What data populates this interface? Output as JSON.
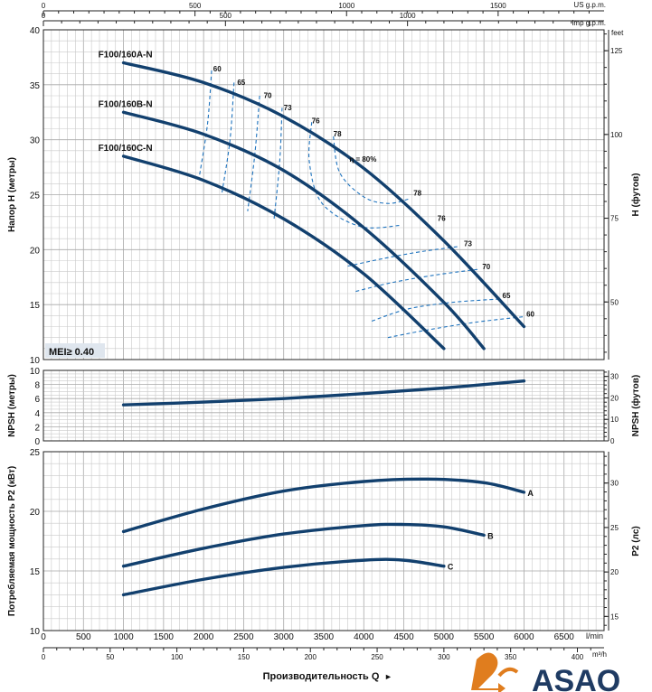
{
  "logo": {
    "brand_text": "ASAO",
    "accent_color": "#e07d1e",
    "text_color": "#1f3b63"
  },
  "axes": {
    "top_us": {
      "unit": "US g.p.m.",
      "ticks": [
        0,
        500,
        1000,
        1500
      ]
    },
    "top_imp": {
      "unit": "Imp g.p.m.",
      "ticks": [
        0,
        500,
        1000
      ]
    },
    "bottom_lmin": {
      "unit": "l/min",
      "ticks": [
        0,
        500,
        1000,
        1500,
        2000,
        2500,
        3000,
        3500,
        4000,
        4500,
        5000,
        5500,
        6000,
        6500
      ]
    },
    "bottom_m3h": {
      "unit": "m³/h",
      "ticks": [
        0,
        50,
        100,
        150,
        200,
        250,
        300,
        350,
        400
      ]
    },
    "xlabel": "Производительность Q"
  },
  "chart_data": [
    {
      "type": "line",
      "name": "head",
      "ylabel": "Напор H (метры)",
      "ylabel_right": "H (футов)",
      "right_unit": "feet",
      "ylim": [
        10,
        40
      ],
      "yticks": [
        10,
        15,
        20,
        25,
        30,
        35,
        40
      ],
      "right_ticks": [
        50,
        75,
        100,
        125
      ],
      "xlim": [
        0,
        7000
      ],
      "badge": "MEI≥ 0.40",
      "eta_label": "η = 80%",
      "series": [
        {
          "name": "F100/160A-N",
          "x": [
            1000,
            2000,
            3000,
            4000,
            5000,
            6000
          ],
          "y": [
            37.0,
            35.2,
            32.1,
            27.4,
            20.8,
            13.0
          ]
        },
        {
          "name": "F100/160B-N",
          "x": [
            1000,
            2000,
            3000,
            4000,
            5000,
            5500
          ],
          "y": [
            32.5,
            30.5,
            27.2,
            22.0,
            15.2,
            11.0
          ]
        },
        {
          "name": "F100/160C-N",
          "x": [
            1000,
            2000,
            3000,
            4000,
            5000
          ],
          "y": [
            28.5,
            26.3,
            22.8,
            17.8,
            11.0
          ]
        }
      ],
      "efficiency_labels": [
        {
          "text": "60",
          "x": 2120,
          "y": 36.2
        },
        {
          "text": "65",
          "x": 2420,
          "y": 35.0
        },
        {
          "text": "70",
          "x": 2750,
          "y": 33.8
        },
        {
          "text": "73",
          "x": 3000,
          "y": 32.7
        },
        {
          "text": "76",
          "x": 3350,
          "y": 31.5
        },
        {
          "text": "78",
          "x": 3620,
          "y": 30.3
        },
        {
          "text": "78",
          "x": 4620,
          "y": 24.9
        },
        {
          "text": "76",
          "x": 4920,
          "y": 22.6
        },
        {
          "text": "73",
          "x": 5250,
          "y": 20.3
        },
        {
          "text": "70",
          "x": 5480,
          "y": 18.2
        },
        {
          "text": "65",
          "x": 5730,
          "y": 15.6
        },
        {
          "text": "60",
          "x": 6030,
          "y": 13.9
        }
      ],
      "efficiency_curves": [
        {
          "x": [
            2100,
            2050,
            1950
          ],
          "y": [
            36.3,
            31.5,
            26.8
          ]
        },
        {
          "x": [
            2380,
            2330,
            2230
          ],
          "y": [
            35.2,
            30.0,
            25.2
          ]
        },
        {
          "x": [
            2700,
            2640,
            2550
          ],
          "y": [
            34.0,
            28.7,
            23.5
          ]
        },
        {
          "x": [
            2980,
            2950,
            2880
          ],
          "y": [
            32.9,
            28.0,
            22.8
          ]
        },
        {
          "x": [
            3350,
            3320,
            3480,
            3960,
            4450
          ],
          "y": [
            31.6,
            28.0,
            24.2,
            22.1,
            22.2
          ]
        },
        {
          "x": [
            3620,
            3700,
            4000,
            4300,
            4560
          ],
          "y": [
            30.3,
            27.0,
            24.8,
            24.2,
            24.6
          ]
        },
        {
          "x": [
            3800,
            4250,
            4700,
            5200
          ],
          "y": [
            18.5,
            19.2,
            19.8,
            20.3
          ]
        },
        {
          "x": [
            3900,
            4350,
            4900,
            5420
          ],
          "y": [
            16.2,
            17.0,
            17.7,
            18.2
          ]
        },
        {
          "x": [
            4100,
            4550,
            5100,
            5680
          ],
          "y": [
            13.5,
            14.6,
            15.2,
            15.5
          ]
        },
        {
          "x": [
            4300,
            4800,
            5400,
            6000
          ],
          "y": [
            12.0,
            12.7,
            13.4,
            13.9
          ]
        }
      ]
    },
    {
      "type": "line",
      "name": "npsh",
      "ylabel": "NPSH (метры)",
      "ylabel_right": "NPSH (футов)",
      "ylim": [
        0,
        10
      ],
      "yticks": [
        0,
        2,
        4,
        6,
        8,
        10
      ],
      "right_ticks": [
        0,
        10,
        20,
        30
      ],
      "xlim": [
        0,
        7000
      ],
      "series": [
        {
          "name": "",
          "x": [
            1000,
            2000,
            3000,
            4000,
            5000,
            6000
          ],
          "y": [
            5.1,
            5.5,
            6.0,
            6.7,
            7.5,
            8.5
          ]
        }
      ]
    },
    {
      "type": "line",
      "name": "power",
      "ylabel": "Потребляемая мощность P2 (кВт)",
      "ylabel_right": "P2 (лс)",
      "ylim": [
        10,
        25
      ],
      "yticks": [
        10,
        15,
        20,
        25
      ],
      "right_ticks": [
        15,
        20,
        25,
        30
      ],
      "xlim": [
        0,
        7000
      ],
      "series": [
        {
          "name": "A",
          "x": [
            1000,
            2000,
            3000,
            4000,
            4800,
            5500,
            6000
          ],
          "y": [
            18.3,
            20.2,
            21.7,
            22.5,
            22.7,
            22.4,
            21.6
          ]
        },
        {
          "name": "B",
          "x": [
            1000,
            2000,
            3000,
            4000,
            4500,
            5000,
            5500
          ],
          "y": [
            15.4,
            16.9,
            18.1,
            18.8,
            18.9,
            18.7,
            18.0
          ]
        },
        {
          "name": "C",
          "x": [
            1000,
            2000,
            3000,
            4000,
            4500,
            5000
          ],
          "y": [
            13.0,
            14.3,
            15.3,
            15.9,
            15.9,
            15.4
          ]
        }
      ]
    }
  ]
}
